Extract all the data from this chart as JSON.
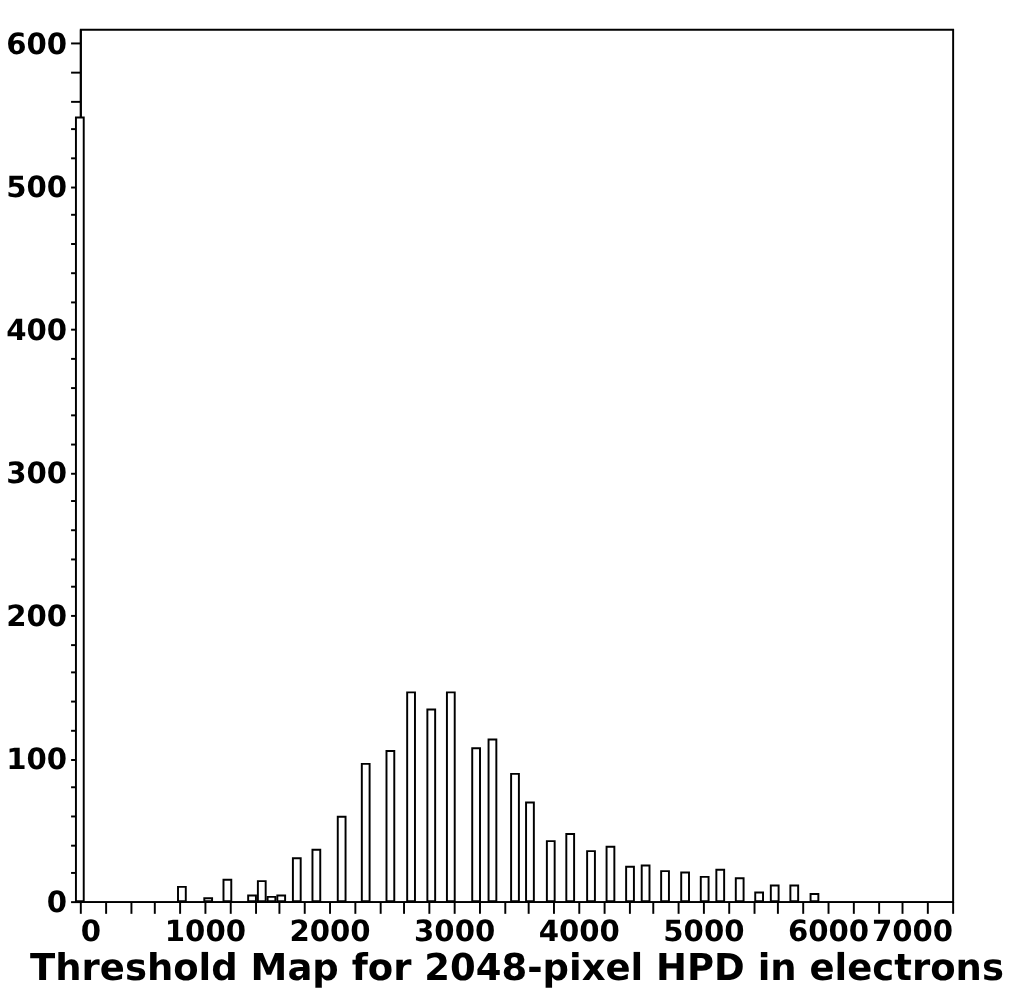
{
  "chart_data": {
    "type": "bar",
    "xlabel": "Threshold Map for 2048-pixel HPD in electrons",
    "x": [
      0,
      819,
      1030,
      1184,
      1382,
      1460,
      1538,
      1616,
      1741,
      1898,
      2101,
      2294,
      2492,
      2658,
      2820,
      2977,
      3180,
      3311,
      3492,
      3612,
      3779,
      3935,
      4102,
      4258,
      4415,
      4540,
      4696,
      4857,
      5014,
      5139,
      5295,
      5451,
      5576,
      5733,
      5895
    ],
    "values": [
      548,
      10,
      2,
      15,
      4,
      14,
      3,
      4,
      30,
      36,
      59,
      96,
      105,
      146,
      134,
      146,
      107,
      113,
      89,
      69,
      42,
      47,
      35,
      38,
      24,
      25,
      21,
      20,
      17,
      22,
      16,
      6,
      11,
      11,
      5
    ],
    "color": "#ffffff",
    "xlim": [
      0,
      7000
    ],
    "xticks": [
      0,
      {
        "value": 200,
        "label": null
      },
      {
        "value": 400,
        "label": null
      },
      {
        "value": 600,
        "label": null
      },
      {
        "value": 800,
        "label": null
      },
      1000,
      {
        "value": 1200,
        "label": null
      },
      {
        "value": 1400,
        "label": null
      },
      {
        "value": 1600,
        "label": null
      },
      {
        "value": 1800,
        "label": null
      },
      2000,
      {
        "value": 2200,
        "label": null
      },
      {
        "value": 2400,
        "label": null
      },
      {
        "value": 2600,
        "label": null
      },
      {
        "value": 2800,
        "label": null
      },
      3000,
      {
        "value": 3200,
        "label": null
      },
      {
        "value": 3400,
        "label": null
      },
      {
        "value": 3600,
        "label": null
      },
      {
        "value": 3800,
        "label": null
      },
      4000,
      {
        "value": 4200,
        "label": null
      },
      {
        "value": 4400,
        "label": null
      },
      {
        "value": 4600,
        "label": null
      },
      {
        "value": 4800,
        "label": null
      },
      5000,
      {
        "value": 5200,
        "label": null
      },
      {
        "value": 5400,
        "label": null
      },
      {
        "value": 5600,
        "label": null
      },
      {
        "value": 5800,
        "label": null
      },
      6000,
      {
        "value": 6200,
        "label": null
      },
      {
        "value": 6400,
        "label": null
      },
      {
        "value": 6600,
        "label": null
      },
      {
        "value": 6800,
        "label": null
      },
      7000
    ],
    "ylim": [
      0,
      610
    ],
    "yticks": [
      0,
      {
        "value": 20,
        "label": null
      },
      {
        "value": 40,
        "label": null
      },
      {
        "value": 60,
        "label": null
      },
      {
        "value": 80,
        "label": null
      },
      100,
      {
        "value": 120,
        "label": null
      },
      {
        "value": 140,
        "label": null
      },
      {
        "value": 160,
        "label": null
      },
      {
        "value": 180,
        "label": null
      },
      200,
      {
        "value": 220,
        "label": null
      },
      {
        "value": 240,
        "label": null
      },
      {
        "value": 260,
        "label": null
      },
      {
        "value": 280,
        "label": null
      },
      300,
      {
        "value": 320,
        "label": null
      },
      {
        "value": 340,
        "label": null
      },
      {
        "value": 360,
        "label": null
      },
      {
        "value": 380,
        "label": null
      },
      400,
      {
        "value": 420,
        "label": null
      },
      {
        "value": 440,
        "label": null
      },
      {
        "value": 460,
        "label": null
      },
      {
        "value": 480,
        "label": null
      },
      500,
      {
        "value": 520,
        "label": null
      },
      {
        "value": 540,
        "label": null
      },
      {
        "value": 560,
        "label": null
      },
      {
        "value": 580,
        "label": null
      },
      600
    ],
    "grid": false
  }
}
